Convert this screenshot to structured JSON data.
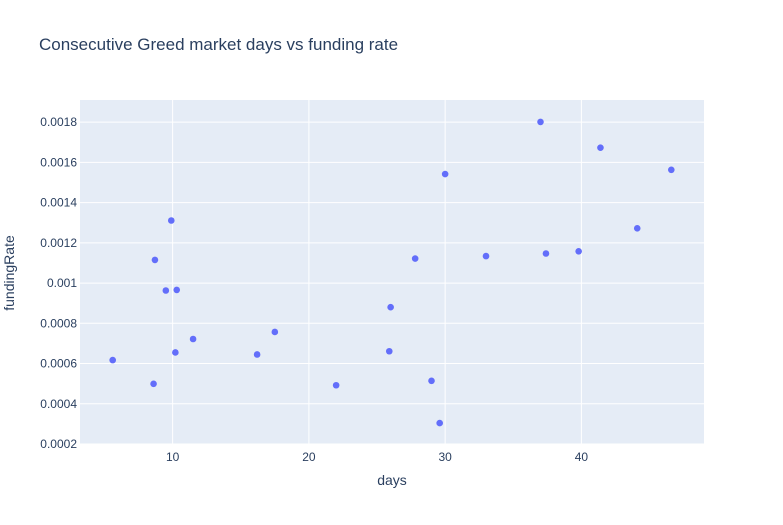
{
  "chart_data": {
    "type": "scatter",
    "title": "Consecutive Greed market days vs funding rate",
    "xlabel": "days",
    "ylabel": "fundingRate",
    "xlim": [
      3.2,
      49
    ],
    "ylim": [
      0.0002,
      0.00191
    ],
    "x_ticks": [
      10,
      20,
      30,
      40
    ],
    "x_tick_labels": [
      "10",
      "20",
      "30",
      "40"
    ],
    "y_ticks": [
      0.0002,
      0.0004,
      0.0006,
      0.0008,
      0.001,
      0.0012,
      0.0014,
      0.0016,
      0.0018
    ],
    "y_tick_labels": [
      "0.0002",
      "0.0004",
      "0.0006",
      "0.0008",
      "0.001",
      "0.0012",
      "0.0014",
      "0.0016",
      "0.0018"
    ],
    "grid": true,
    "marker_color": "#636efa",
    "plot_background": "#e5ecf6",
    "points": [
      {
        "x": 5.6,
        "y": 0.000617
      },
      {
        "x": 8.6,
        "y": 0.000499
      },
      {
        "x": 8.7,
        "y": 0.001115
      },
      {
        "x": 9.5,
        "y": 0.000963
      },
      {
        "x": 9.9,
        "y": 0.001311
      },
      {
        "x": 10.2,
        "y": 0.000655
      },
      {
        "x": 10.3,
        "y": 0.000966
      },
      {
        "x": 11.5,
        "y": 0.000722
      },
      {
        "x": 16.2,
        "y": 0.000645
      },
      {
        "x": 17.5,
        "y": 0.000757
      },
      {
        "x": 22.0,
        "y": 0.000492
      },
      {
        "x": 25.9,
        "y": 0.000661
      },
      {
        "x": 26.0,
        "y": 0.00088
      },
      {
        "x": 27.8,
        "y": 0.001122
      },
      {
        "x": 29.0,
        "y": 0.000514
      },
      {
        "x": 29.6,
        "y": 0.000304
      },
      {
        "x": 30.0,
        "y": 0.001542
      },
      {
        "x": 33.0,
        "y": 0.001134
      },
      {
        "x": 37.0,
        "y": 0.001801
      },
      {
        "x": 37.4,
        "y": 0.001147
      },
      {
        "x": 39.8,
        "y": 0.001158
      },
      {
        "x": 41.4,
        "y": 0.001673
      },
      {
        "x": 44.1,
        "y": 0.001272
      },
      {
        "x": 46.6,
        "y": 0.001563
      }
    ]
  }
}
